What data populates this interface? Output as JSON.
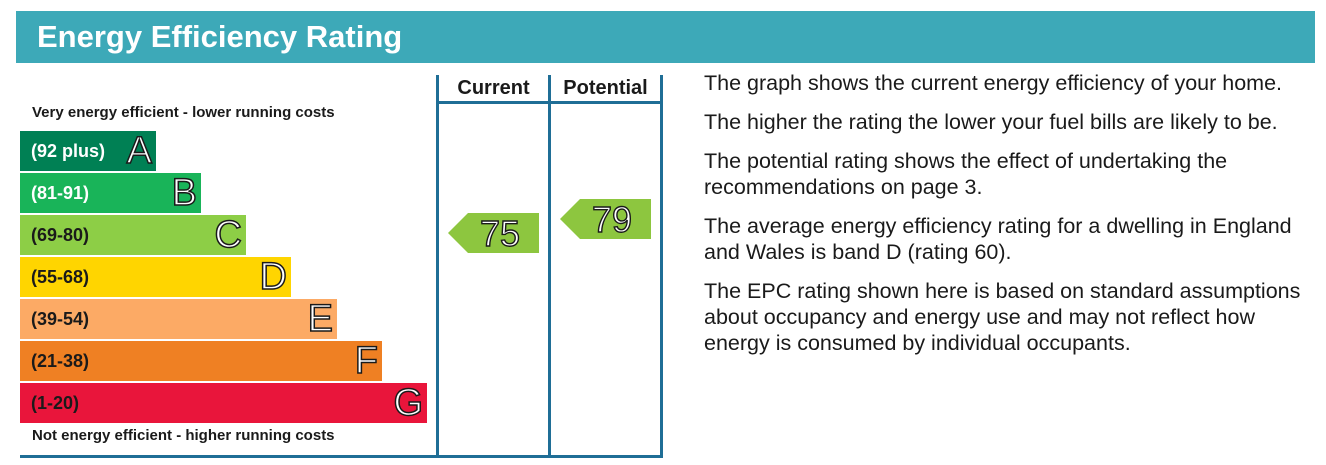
{
  "header": {
    "title": "Energy Efficiency Rating"
  },
  "captions": {
    "top": "Very energy efficient - lower running costs",
    "bottom": "Not energy efficient - higher running costs"
  },
  "columns": {
    "current": "Current",
    "potential": "Potential"
  },
  "chart_data": {
    "type": "bar",
    "title": "Energy Efficiency Rating",
    "bands": [
      {
        "range": "(92 plus)",
        "letter": "A",
        "color": "#008054",
        "text_color": "#ffffff"
      },
      {
        "range": "(81-91)",
        "letter": "B",
        "color": "#19b459",
        "text_color": "#ffffff"
      },
      {
        "range": "(69-80)",
        "letter": "C",
        "color": "#8dce46",
        "text_color": "#1a1a1a"
      },
      {
        "range": "(55-68)",
        "letter": "D",
        "color": "#ffd500",
        "text_color": "#1a1a1a"
      },
      {
        "range": "(39-54)",
        "letter": "E",
        "color": "#fcaa65",
        "text_color": "#1a1a1a"
      },
      {
        "range": "(21-38)",
        "letter": "F",
        "color": "#ef8023",
        "text_color": "#1a1a1a"
      },
      {
        "range": "(1-20)",
        "letter": "G",
        "color": "#e9153b",
        "text_color": "#1a1a1a"
      }
    ],
    "current": {
      "value": 75,
      "band": "C",
      "color": "#8dc63f"
    },
    "potential": {
      "value": 79,
      "band": "C",
      "color": "#8dc63f"
    }
  },
  "description": [
    "The graph shows the current energy efficiency of your home.",
    "The higher the rating the lower your fuel bills are likely to be.",
    "The potential rating shows the effect of undertaking the recommendations on page 3.",
    "The average energy efficiency rating for a dwelling in England and Wales is band D (rating 60).",
    "The EPC rating shown here is based on standard assumptions about occupancy and energy use and may not reflect how energy is consumed by individual occupants."
  ]
}
